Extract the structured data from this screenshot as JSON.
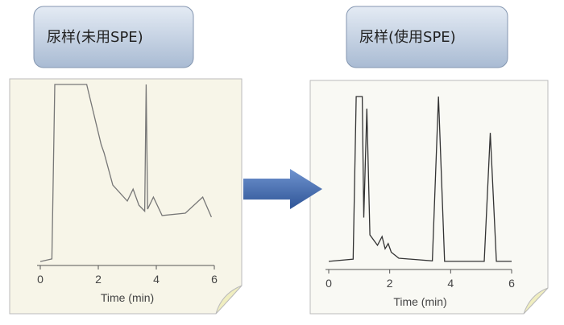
{
  "chart_data": [
    {
      "type": "line",
      "title": "尿样(未用SPE)",
      "x_label": "Time (min)",
      "xlim": [
        0,
        6
      ],
      "ylim": [
        0,
        100
      ],
      "xticks": [
        0,
        2,
        4,
        6
      ],
      "series": [
        {
          "color": "#777777",
          "x": [
            0,
            0.4,
            0.5,
            0.6,
            0.9,
            1.1,
            1.6,
            2.1,
            2.2,
            2.5,
            3.0,
            3.2,
            3.4,
            3.6,
            3.65,
            3.7,
            3.9,
            4.2,
            5.0,
            5.6,
            5.9
          ],
          "values": [
            2.2,
            3.6,
            100,
            100,
            100,
            100,
            100,
            66.7,
            62.2,
            44.4,
            35.6,
            42.2,
            33.3,
            30,
            100,
            31.1,
            37.8,
            27.6,
            28.9,
            37.8,
            26.7
          ]
        }
      ]
    },
    {
      "type": "line",
      "title": "尿样(使用SPE)",
      "x_label": "Time (min)",
      "xlim": [
        0,
        6
      ],
      "ylim": [
        0,
        100
      ],
      "xticks": [
        0,
        2,
        4,
        6
      ],
      "series": [
        {
          "color": "#333333",
          "x": [
            0,
            0.8,
            0.9,
            1.1,
            1.15,
            1.25,
            1.35,
            1.6,
            1.75,
            1.85,
            1.95,
            2.05,
            2.3,
            3.4,
            3.6,
            3.8,
            5.1,
            5.3,
            5.5,
            6.0
          ],
          "values": [
            4.7,
            6,
            100,
            100,
            30,
            93,
            20,
            14,
            19,
            12,
            15,
            10,
            6.5,
            5,
            100,
            4.7,
            4.7,
            79,
            4.7,
            4.7
          ]
        }
      ]
    }
  ]
}
